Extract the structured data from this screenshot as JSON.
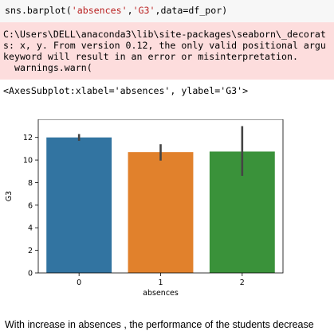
{
  "input_cell": {
    "code_prefix": "sns.barplot(",
    "arg1": "'absences'",
    "sep1": ",",
    "arg2": "'G3'",
    "code_suffix": ",data=df_por)"
  },
  "stderr": {
    "lines": [
      "C:\\Users\\DELL\\anaconda3\\lib\\site-packages\\seaborn\\_decorat",
      "s: x, y. From version 0.12, the only valid positional argu",
      "keyword will result in an error or misinterpretation.",
      "  warnings.warn("
    ]
  },
  "output_text": "<AxesSubplot:xlabel='absences', ylabel='G3'>",
  "chart_data": {
    "type": "bar",
    "categories": [
      "0",
      "1",
      "2"
    ],
    "values": [
      12.0,
      10.7,
      10.75
    ],
    "error_low": [
      11.7,
      9.95,
      8.6
    ],
    "error_high": [
      12.3,
      11.4,
      13.0
    ],
    "colors": [
      "#3274a1",
      "#e1812c",
      "#3a923a"
    ],
    "xlabel": "absences",
    "ylabel": "G3",
    "ylim": [
      0,
      13.6
    ],
    "yticks": [
      0,
      2,
      4,
      6,
      8,
      10,
      12
    ],
    "grid": false
  },
  "markdown_text": "With increase in absences , the performance of the students decrease"
}
